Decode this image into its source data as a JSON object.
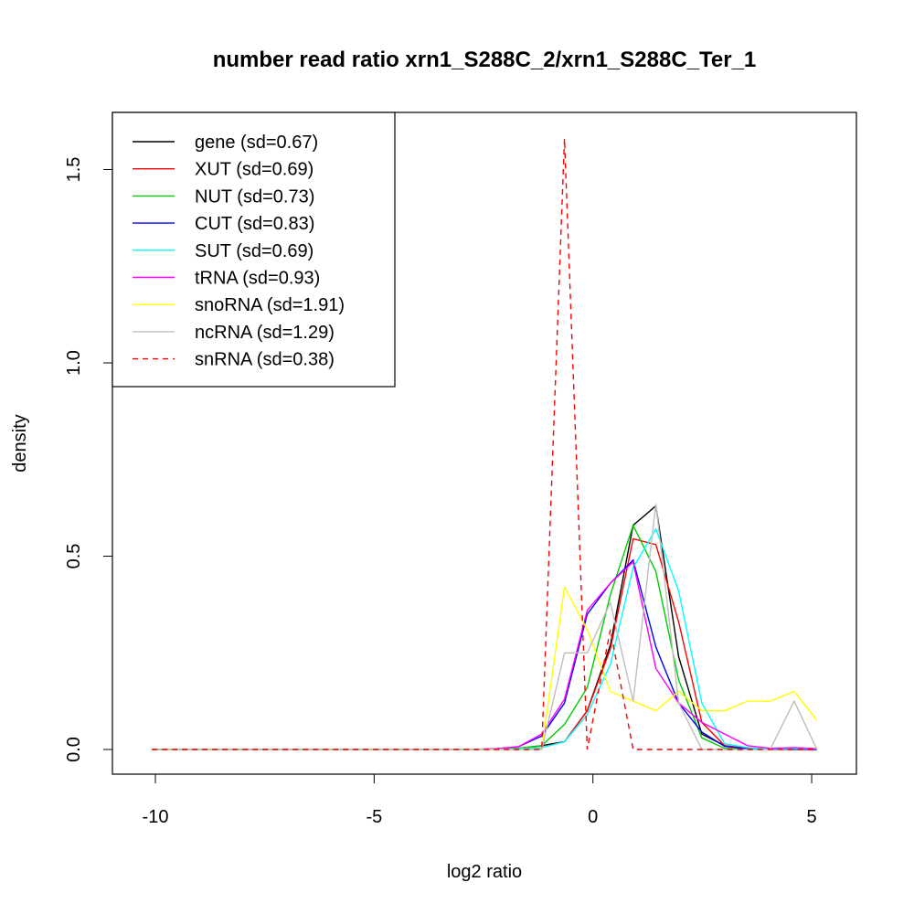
{
  "chart_data": {
    "type": "line",
    "title": "number read ratio xrn1_S288C_2/xrn1_S288C_Ter_1",
    "xlabel": "log2 ratio",
    "ylabel": "density",
    "xlim": [
      -10.7,
      5.7
    ],
    "ylim": [
      -0.065,
      1.65
    ],
    "xticks": [
      -10,
      -5,
      0,
      5
    ],
    "xtick_labels": [
      "-10",
      "-5",
      "0",
      "5"
    ],
    "yticks": [
      0,
      0.5,
      1,
      1.5
    ],
    "ytick_labels": [
      "0.0",
      "0.5",
      "1.0",
      "1.5"
    ],
    "grid": false,
    "legend_position": "top-left",
    "x": [
      -10.08,
      -9.56,
      -9.03,
      -8.51,
      -7.98,
      -7.46,
      -6.94,
      -6.41,
      -5.89,
      -5.36,
      -4.84,
      -4.32,
      -3.79,
      -3.27,
      -2.74,
      -2.22,
      -1.7,
      -1.17,
      -0.65,
      -0.13,
      0.4,
      0.92,
      1.44,
      1.96,
      2.49,
      3.01,
      3.53,
      4.05,
      4.6,
      5.12
    ],
    "series": [
      {
        "name": "gene (sd=0.67)",
        "color": "#000000",
        "dash": false,
        "values": [
          0,
          0,
          0,
          0,
          0,
          0,
          0,
          0,
          0,
          0,
          0,
          0,
          0,
          0,
          0,
          0.001,
          0.003,
          0.01,
          0.02,
          0.1,
          0.27,
          0.58,
          0.63,
          0.24,
          0.04,
          0.01,
          0.002,
          0.001,
          0,
          0
        ]
      },
      {
        "name": "XUT (sd=0.69)",
        "color": "#ff0000",
        "dash": false,
        "values": [
          0,
          0,
          0,
          0,
          0,
          0,
          0,
          0,
          0,
          0,
          0,
          0,
          0,
          0,
          0,
          0.001,
          0.002,
          0.005,
          0.02,
          0.1,
          0.26,
          0.545,
          0.53,
          0.33,
          0.07,
          0.01,
          0.003,
          0.001,
          0.001,
          0
        ]
      },
      {
        "name": "NUT (sd=0.73)",
        "color": "#00cd00",
        "dash": false,
        "values": [
          0,
          0,
          0,
          0,
          0,
          0,
          0,
          0,
          0,
          0,
          0,
          0,
          0,
          0,
          0,
          0.001,
          0.003,
          0.01,
          0.065,
          0.16,
          0.4,
          0.58,
          0.46,
          0.18,
          0.03,
          0.003,
          0.001,
          0.001,
          0.001,
          0.001
        ]
      },
      {
        "name": "CUT (sd=0.83)",
        "color": "#0000ff",
        "dash": false,
        "values": [
          0,
          0,
          0,
          0,
          0,
          0,
          0,
          0,
          0,
          0,
          0,
          0,
          0,
          0,
          0,
          0.002,
          0.007,
          0.035,
          0.12,
          0.35,
          0.43,
          0.49,
          0.265,
          0.12,
          0.045,
          0.008,
          0.002,
          0.001,
          0.001,
          0
        ]
      },
      {
        "name": "SUT (sd=0.69)",
        "color": "#00ffff",
        "dash": false,
        "values": [
          0,
          0,
          0,
          0,
          0,
          0,
          0,
          0,
          0,
          0,
          0,
          0,
          0,
          0,
          0,
          0.001,
          0.002,
          0.005,
          0.02,
          0.09,
          0.22,
          0.47,
          0.57,
          0.41,
          0.12,
          0.015,
          0.005,
          0.002,
          0.002,
          0.001
        ]
      },
      {
        "name": "tRNA (sd=0.93)",
        "color": "#ff00ff",
        "dash": false,
        "values": [
          0,
          0,
          0,
          0,
          0,
          0,
          0,
          0,
          0,
          0,
          0,
          0,
          0,
          0,
          0,
          0.002,
          0.007,
          0.04,
          0.13,
          0.36,
          0.43,
          0.485,
          0.21,
          0.12,
          0.07,
          0.04,
          0.01,
          0.003,
          0.005,
          0.002
        ]
      },
      {
        "name": "snoRNA (sd=1.91)",
        "color": "#ffff00",
        "dash": false,
        "values": [
          0,
          0,
          0,
          0,
          0,
          0,
          0,
          0,
          0,
          0,
          0,
          0,
          0,
          0,
          0,
          0,
          0,
          0,
          0.42,
          0.31,
          0.15,
          0.125,
          0.1,
          0.15,
          0.1,
          0.1,
          0.125,
          0.125,
          0.15,
          0.075
        ]
      },
      {
        "name": "ncRNA (sd=1.29)",
        "color": "#bebebe",
        "dash": false,
        "values": [
          0,
          0,
          0,
          0,
          0,
          0,
          0,
          0,
          0,
          0,
          0,
          0,
          0,
          0,
          0,
          0,
          0,
          0,
          0.25,
          0.25,
          0.38,
          0.125,
          0.635,
          0.12,
          0,
          0,
          0,
          0,
          0.125,
          0
        ]
      },
      {
        "name": "snRNA (sd=0.38)",
        "color": "#ff0000",
        "dash": true,
        "values": [
          0,
          0,
          0,
          0,
          0,
          0,
          0,
          0,
          0,
          0,
          0,
          0,
          0,
          0,
          0,
          0,
          0,
          0,
          1.58,
          0,
          0.31,
          0,
          0,
          0,
          0,
          0,
          0,
          0,
          0,
          0
        ]
      }
    ]
  }
}
